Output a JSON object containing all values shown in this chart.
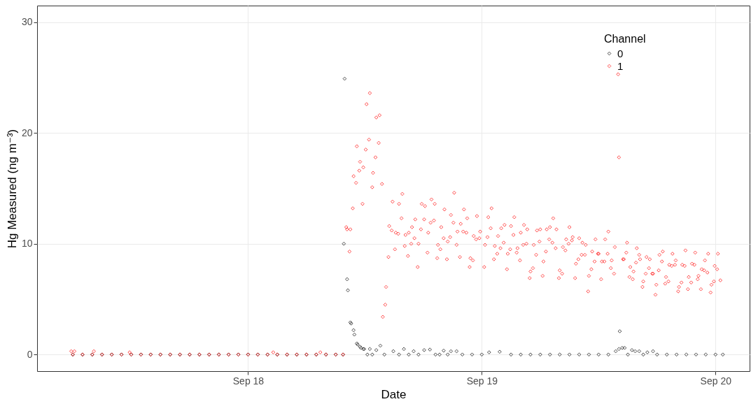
{
  "chart_data": {
    "type": "scatter",
    "xlabel": "Date",
    "ylabel": "Hg Measured (ng m⁻³)",
    "legend_title": "Channel",
    "legend": "top right",
    "marker": "diamond",
    "grid": true,
    "xlim": [
      "--09-17T02:20",
      "--09-20T03:30"
    ],
    "xticks": [
      {
        "value": "--09-18",
        "label": "Sep 18"
      },
      {
        "value": "--09-19",
        "label": "Sep 19"
      },
      {
        "value": "--09-20",
        "label": "Sep 20"
      }
    ],
    "ylim": [
      -1.5,
      31.5
    ],
    "yticks": [
      0,
      10,
      20,
      30
    ],
    "series": [
      {
        "name": "0",
        "color": "#000000",
        "x": [
          "--09-17T06:00",
          "--09-17T07:00",
          "--09-17T08:00",
          "--09-17T09:00",
          "--09-17T10:00",
          "--09-17T11:00",
          "--09-17T12:00",
          "--09-17T13:00",
          "--09-17T14:00",
          "--09-17T15:00",
          "--09-17T16:00",
          "--09-17T17:00",
          "--09-17T18:00",
          "--09-17T19:00",
          "--09-17T20:00",
          "--09-17T21:00",
          "--09-17T22:00",
          "--09-17T23:00",
          "--09-18T00:00",
          "--09-18T01:00",
          "--09-18T02:00",
          "--09-18T03:00",
          "--09-18T04:00",
          "--09-18T05:00",
          "--09-18T06:00",
          "--09-18T07:00",
          "--09-18T08:00",
          "--09-18T09:00",
          "--09-18T09:45",
          "--09-18T09:50",
          "--09-18T09:55",
          "--09-18T10:10",
          "--09-18T10:15",
          "--09-18T10:30",
          "--09-18T10:35",
          "--09-18T10:50",
          "--09-18T10:55",
          "--09-18T11:10",
          "--09-18T11:15",
          "--09-18T11:30",
          "--09-18T11:35",
          "--09-18T11:50",
          "--09-18T11:55",
          "--09-18T12:15",
          "--09-18T12:30",
          "--09-18T12:45",
          "--09-18T13:10",
          "--09-18T13:35",
          "--09-18T14:00",
          "--09-18T14:55",
          "--09-18T15:30",
          "--09-18T16:00",
          "--09-18T16:30",
          "--09-18T17:00",
          "--09-18T17:30",
          "--09-18T18:05",
          "--09-18T18:40",
          "--09-18T19:15",
          "--09-18T19:40",
          "--09-18T20:05",
          "--09-18T20:30",
          "--09-18T20:50",
          "--09-18T21:25",
          "--09-18T22:00",
          "--09-18T23:00",
          "--09-19T00:00",
          "--09-19T00:45",
          "--09-19T01:50",
          "--09-19T03:00",
          "--09-19T04:00",
          "--09-19T05:00",
          "--09-19T06:00",
          "--09-19T07:00",
          "--09-19T08:00",
          "--09-19T09:00",
          "--09-19T10:00",
          "--09-19T11:00",
          "--09-19T12:00",
          "--09-19T13:00",
          "--09-19T13:45",
          "--09-19T14:05",
          "--09-19T14:10",
          "--09-19T14:25",
          "--09-19T14:40",
          "--09-19T15:00",
          "--09-19T15:25",
          "--09-19T15:45",
          "--09-19T16:10",
          "--09-19T16:35",
          "--09-19T17:00",
          "--09-19T17:35",
          "--09-19T18:00",
          "--09-19T19:00",
          "--09-19T20:00",
          "--09-19T21:00",
          "--09-19T22:00",
          "--09-19T23:00",
          "--09-20T00:00",
          "--09-20T00:45"
        ],
        "values": [
          0,
          0,
          0,
          0,
          0,
          0,
          0,
          0,
          0,
          0,
          0,
          0,
          0,
          0,
          0,
          0,
          0,
          0,
          0,
          0,
          0,
          0,
          0,
          0,
          0,
          0,
          0,
          0,
          0,
          10.0,
          24.9,
          6.8,
          5.8,
          2.9,
          2.8,
          2.2,
          1.8,
          1.0,
          0.9,
          0.7,
          0.6,
          0.5,
          0.5,
          0,
          0.5,
          0,
          0.4,
          0.8,
          0,
          0.3,
          0,
          0.5,
          0,
          0.3,
          0,
          0.4,
          0.45,
          0,
          0,
          0.35,
          0,
          0.3,
          0.3,
          0,
          0,
          0,
          0.2,
          0.25,
          0,
          0,
          0,
          0,
          0,
          0,
          0,
          0,
          0,
          0,
          0,
          0.3,
          0.5,
          2.1,
          0.6,
          0.6,
          0,
          0.4,
          0.3,
          0.3,
          0,
          0.2,
          0.3,
          0,
          0,
          0,
          0,
          0,
          0,
          0,
          0
        ]
      },
      {
        "name": "1",
        "color": "#ff0000",
        "x": [
          "--09-17T05:50",
          "--09-17T06:00",
          "--09-17T06:10",
          "--09-17T07:00",
          "--09-17T08:00",
          "--09-17T08:10",
          "--09-17T09:00",
          "--09-17T10:00",
          "--09-17T11:00",
          "--09-17T11:50",
          "--09-17T12:00",
          "--09-17T13:00",
          "--09-17T14:00",
          "--09-17T15:00",
          "--09-17T16:00",
          "--09-17T17:00",
          "--09-17T18:00",
          "--09-17T19:00",
          "--09-17T20:00",
          "--09-17T21:00",
          "--09-17T22:00",
          "--09-17T23:00",
          "--09-18T00:00",
          "--09-18T01:00",
          "--09-18T02:00",
          "--09-18T02:35",
          "--09-18T03:00",
          "--09-18T04:00",
          "--09-18T05:00",
          "--09-18T06:00",
          "--09-18T07:00",
          "--09-18T07:25",
          "--09-18T08:00",
          "--09-18T09:00",
          "--09-18T09:45",
          "--09-18T10:05",
          "--09-18T10:10",
          "--09-18T10:25",
          "--09-18T10:30",
          "--09-18T10:45",
          "--09-18T10:50",
          "--09-18T11:05",
          "--09-18T11:10",
          "--09-18T11:25",
          "--09-18T11:30",
          "--09-18T11:45",
          "--09-18T11:50",
          "--09-18T12:05",
          "--09-18T12:10",
          "--09-18T12:25",
          "--09-18T12:30",
          "--09-18T12:45",
          "--09-18T12:50",
          "--09-18T13:05",
          "--09-18T13:10",
          "--09-18T13:25",
          "--09-18T13:30",
          "--09-18T13:45",
          "--09-18T13:50",
          "--09-18T14:05",
          "--09-18T14:10",
          "--09-18T14:25",
          "--09-18T14:30",
          "--09-18T14:45",
          "--09-18T14:50",
          "--09-18T15:05",
          "--09-18T15:10",
          "--09-18T15:25",
          "--09-18T15:30",
          "--09-18T15:45",
          "--09-18T15:50",
          "--09-18T16:05",
          "--09-18T16:10",
          "--09-18T16:25",
          "--09-18T16:30",
          "--09-18T16:45",
          "--09-18T16:50",
          "--09-18T17:05",
          "--09-18T17:10",
          "--09-18T17:25",
          "--09-18T17:30",
          "--09-18T17:45",
          "--09-18T17:50",
          "--09-18T18:05",
          "--09-18T18:10",
          "--09-18T18:25",
          "--09-18T18:30",
          "--09-18T18:45",
          "--09-18T18:50",
          "--09-18T19:05",
          "--09-18T19:10",
          "--09-18T19:25",
          "--09-18T19:30",
          "--09-18T19:45",
          "--09-18T19:50",
          "--09-18T20:05",
          "--09-18T20:10",
          "--09-18T20:25",
          "--09-18T20:30",
          "--09-18T20:45",
          "--09-18T20:50",
          "--09-18T21:05",
          "--09-18T21:10",
          "--09-18T21:25",
          "--09-18T21:30",
          "--09-18T21:45",
          "--09-18T21:50",
          "--09-18T22:05",
          "--09-18T22:10",
          "--09-18T22:25",
          "--09-18T22:30",
          "--09-18T22:45",
          "--09-18T22:50",
          "--09-18T23:05",
          "--09-18T23:10",
          "--09-18T23:25",
          "--09-18T23:30",
          "--09-18T23:45",
          "--09-18T23:50",
          "--09-19T00:15",
          "--09-19T00:20",
          "--09-19T00:35",
          "--09-19T00:40",
          "--09-19T00:55",
          "--09-19T01:00",
          "--09-19T01:15",
          "--09-19T01:20",
          "--09-19T01:35",
          "--09-19T01:40",
          "--09-19T01:55",
          "--09-19T02:00",
          "--09-19T02:15",
          "--09-19T02:20",
          "--09-19T02:35",
          "--09-19T02:40",
          "--09-19T02:55",
          "--09-19T03:00",
          "--09-19T03:15",
          "--09-19T03:20",
          "--09-19T03:35",
          "--09-19T03:40",
          "--09-19T03:55",
          "--09-19T04:00",
          "--09-19T04:15",
          "--09-19T04:20",
          "--09-19T04:35",
          "--09-19T04:40",
          "--09-19T04:55",
          "--09-19T05:00",
          "--09-19T05:15",
          "--09-19T05:20",
          "--09-19T05:35",
          "--09-19T05:40",
          "--09-19T05:55",
          "--09-19T06:00",
          "--09-19T06:15",
          "--09-19T06:20",
          "--09-19T06:35",
          "--09-19T06:40",
          "--09-19T06:55",
          "--09-19T07:00",
          "--09-19T07:15",
          "--09-19T07:20",
          "--09-19T07:35",
          "--09-19T07:40",
          "--09-19T07:55",
          "--09-19T08:00",
          "--09-19T08:15",
          "--09-19T08:20",
          "--09-19T08:35",
          "--09-19T08:40",
          "--09-19T08:55",
          "--09-19T09:00",
          "--09-19T09:15",
          "--09-19T09:20",
          "--09-19T09:35",
          "--09-19T09:40",
          "--09-19T09:55",
          "--09-19T10:00",
          "--09-19T10:15",
          "--09-19T10:20",
          "--09-19T10:35",
          "--09-19T10:40",
          "--09-19T10:55",
          "--09-19T11:00",
          "--09-19T11:15",
          "--09-19T11:20",
          "--09-19T11:35",
          "--09-19T11:40",
          "--09-19T11:55",
          "--09-19T12:00",
          "--09-19T12:15",
          "--09-19T12:20",
          "--09-19T12:35",
          "--09-19T12:40",
          "--09-19T12:55",
          "--09-19T13:00",
          "--09-19T13:15",
          "--09-19T13:20",
          "--09-19T13:35",
          "--09-19T13:40",
          "--09-19T14:00",
          "--09-19T14:05",
          "--09-19T14:30",
          "--09-19T14:35",
          "--09-19T14:50",
          "--09-19T14:55",
          "--09-19T15:10",
          "--09-19T15:15",
          "--09-19T15:30",
          "--09-19T15:35",
          "--09-19T15:50",
          "--09-19T15:55",
          "--09-19T16:10",
          "--09-19T16:15",
          "--09-19T16:30",
          "--09-19T16:35",
          "--09-19T16:50",
          "--09-19T16:55",
          "--09-19T17:10",
          "--09-19T17:15",
          "--09-19T17:30",
          "--09-19T17:35",
          "--09-19T17:50",
          "--09-19T17:55",
          "--09-19T18:10",
          "--09-19T18:15",
          "--09-19T18:30",
          "--09-19T18:35",
          "--09-19T18:50",
          "--09-19T18:55",
          "--09-19T19:10",
          "--09-19T19:15",
          "--09-19T19:30",
          "--09-19T19:35",
          "--09-19T19:50",
          "--09-19T19:55",
          "--09-19T20:10",
          "--09-19T20:15",
          "--09-19T20:30",
          "--09-19T20:35",
          "--09-19T20:50",
          "--09-19T20:55",
          "--09-19T21:10",
          "--09-19T21:15",
          "--09-19T21:30",
          "--09-19T21:35",
          "--09-19T21:50",
          "--09-19T21:55",
          "--09-19T22:10",
          "--09-19T22:15",
          "--09-19T22:30",
          "--09-19T22:35",
          "--09-19T22:50",
          "--09-19T22:55",
          "--09-19T23:10",
          "--09-19T23:15",
          "--09-19T23:30",
          "--09-19T23:35",
          "--09-19T23:50",
          "--09-19T23:55",
          "--09-20T00:10",
          "--09-20T00:15",
          "--09-20T00:30"
        ],
        "values": [
          0.3,
          0,
          0.3,
          0,
          0,
          0.3,
          0,
          0,
          0,
          0.2,
          0,
          0,
          0,
          0,
          0,
          0,
          0,
          0,
          0,
          0,
          0,
          0,
          0,
          0,
          0,
          0.2,
          0,
          0,
          0,
          0,
          0,
          0.2,
          0,
          0,
          0,
          11.5,
          11.3,
          9.3,
          11.3,
          13.2,
          16.1,
          15.5,
          18.8,
          16.6,
          17.4,
          13.6,
          16.9,
          18.5,
          22.6,
          19.4,
          23.6,
          15.1,
          16.4,
          17.8,
          21.4,
          19.1,
          21.6,
          15.4,
          3.4,
          4.5,
          6.1,
          8.8,
          11.6,
          11.2,
          13.8,
          9.5,
          11.0,
          10.9,
          13.6,
          12.3,
          14.5,
          9.8,
          10.8,
          8.9,
          11.0,
          10.0,
          11.5,
          10.5,
          12.2,
          7.9,
          10.0,
          11.3,
          13.6,
          12.2,
          13.4,
          9.2,
          11.0,
          11.9,
          14.0,
          12.1,
          13.6,
          8.7,
          9.9,
          9.5,
          11.5,
          10.5,
          13.1,
          8.6,
          10.2,
          10.6,
          12.6,
          11.9,
          14.6,
          9.9,
          11.1,
          8.8,
          11.8,
          11.1,
          13.1,
          11.0,
          12.3,
          7.9,
          8.7,
          8.5,
          10.7,
          10.4,
          12.5,
          10.5,
          11.1,
          7.9,
          9.9,
          10.6,
          12.4,
          11.4,
          13.2,
          8.6,
          9.8,
          9.1,
          10.7,
          9.6,
          11.4,
          10.1,
          11.7,
          7.7,
          9.1,
          9.5,
          11.6,
          10.8,
          12.4,
          9.2,
          9.6,
          8.5,
          11.0,
          9.9,
          11.7,
          10.0,
          11.3,
          6.9,
          7.5,
          7.8,
          9.9,
          9.0,
          11.2,
          10.2,
          11.3,
          7.1,
          8.4,
          9.3,
          11.3,
          10.4,
          11.5,
          10.1,
          12.3,
          9.6,
          11.3,
          6.9,
          7.6,
          7.3,
          9.7,
          9.4,
          10.4,
          10.0,
          11.5,
          10.3,
          10.6,
          6.9,
          8.2,
          8.6,
          10.5,
          9.0,
          10.1,
          9.0,
          9.9,
          5.7,
          7.1,
          7.7,
          9.3,
          8.4,
          10.4,
          9.1,
          9.1,
          6.8,
          8.4,
          8.4,
          10.4,
          9.1,
          11.1,
          7.8,
          8.5,
          7.3,
          9.7,
          25.3,
          17.8,
          8.6,
          8.6,
          9.2,
          10.1,
          7.0,
          7.9,
          6.8,
          7.5,
          8.3,
          9.6,
          9.0,
          8.6,
          6.1,
          6.6,
          7.3,
          8.8,
          7.8,
          8.6,
          7.3,
          7.3,
          5.4,
          6.3,
          7.6,
          9.0,
          8.4,
          9.3,
          6.4,
          7.0,
          6.6,
          8.1,
          8.0,
          9.1,
          8.1,
          8.5,
          5.7,
          6.1,
          6.5,
          8.1,
          8.0,
          9.4,
          5.9,
          7.0,
          6.5,
          8.2,
          8.1,
          9.2,
          6.8,
          7.1,
          5.9,
          7.7,
          7.6,
          8.5,
          7.4,
          9.1,
          5.6,
          6.3,
          6.6,
          8.0,
          7.7,
          9.1,
          6.7
        ]
      }
    ]
  }
}
